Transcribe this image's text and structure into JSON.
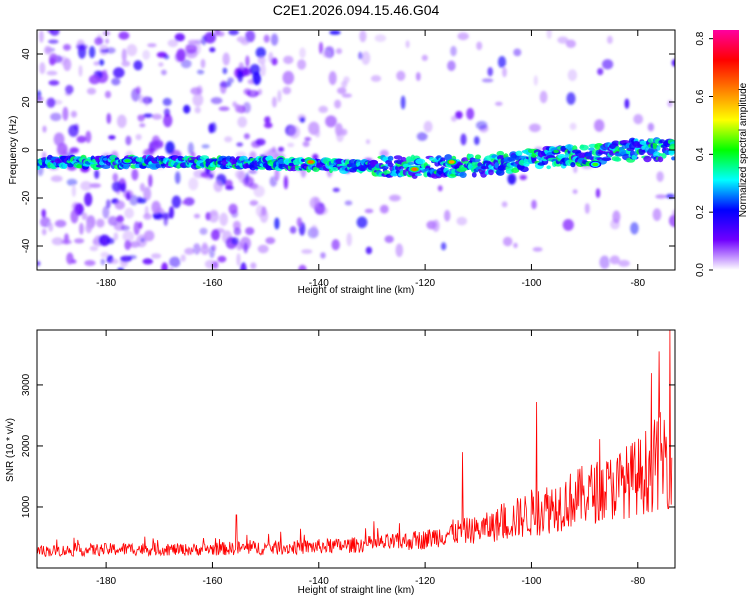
{
  "title": "C2E1.2026.094.15.46.G04",
  "chart_data": [
    {
      "type": "heatmap",
      "name": "spectrogram",
      "xlabel": "Height of straight line (km)",
      "ylabel": "Frequency (Hz)",
      "xlim": [
        -193,
        -73
      ],
      "ylim": [
        -50,
        50
      ],
      "xticks": [
        -180,
        -160,
        -140,
        -120,
        -100,
        -80
      ],
      "xticklabels": [
        "-180",
        "-160",
        "-140",
        "-120",
        "-100",
        "-80"
      ],
      "yticks": [
        -40,
        -20,
        0,
        20,
        40
      ],
      "yticklabels": [
        "-40",
        "-20",
        "0",
        "20",
        "40"
      ],
      "band": {
        "description_points_x": [
          -193,
          -170,
          -150,
          -130,
          -120,
          -110,
          -100,
          -90,
          -80,
          -75
        ],
        "center_freq_hz": [
          -5,
          -5,
          -5.5,
          -7,
          -7,
          -6.5,
          -4,
          -2,
          0,
          0
        ],
        "hotspots": [
          {
            "x": -141.5,
            "y": -5,
            "amp": 0.8
          },
          {
            "x": -122,
            "y": -8,
            "amp": 0.8
          },
          {
            "x": -115,
            "y": -5,
            "amp": 0.75
          },
          {
            "x": -88,
            "y": -6,
            "amp": 0.55
          },
          {
            "x": -176,
            "y": -4.5,
            "amp": 0.5
          }
        ]
      },
      "colorbar": {
        "label": "Normalized spectral amplitude",
        "range": [
          0,
          0.83
        ],
        "ticks": [
          0.0,
          0.2,
          0.4,
          0.6,
          0.8
        ],
        "ticklabels": [
          "0.0",
          "0.2",
          "0.4",
          "0.6",
          "0.8"
        ],
        "colormap": [
          "#ffffff",
          "#7000ff",
          "#0000ff",
          "#00ffff",
          "#00ff00",
          "#ffff00",
          "#ff8000",
          "#ff0000",
          "#ff00a0"
        ]
      }
    },
    {
      "type": "line",
      "name": "snr",
      "xlabel": "Height of straight line (km)",
      "ylabel": "SNR (10 * v/v)",
      "xlim": [
        -193,
        -73
      ],
      "ylim": [
        0,
        3900
      ],
      "xticks": [
        -180,
        -160,
        -140,
        -120,
        -100,
        -80
      ],
      "xticklabels": [
        "-180",
        "-160",
        "-140",
        "-120",
        "-100",
        "-80"
      ],
      "yticks": [
        1000,
        2000,
        3000
      ],
      "yticklabels": [
        "1000",
        "2000",
        "3000"
      ],
      "color": "#ff0000",
      "series": [
        {
          "name": "SNR",
          "x": [
            -193,
            -185,
            -175,
            -165,
            -155,
            -145,
            -135,
            -125,
            -120,
            -115,
            -110,
            -105,
            -100,
            -95,
            -90,
            -85,
            -80,
            -76,
            -74
          ],
          "baseline": [
            250,
            260,
            280,
            270,
            290,
            300,
            330,
            380,
            420,
            520,
            560,
            650,
            780,
            900,
            1050,
            1150,
            1300,
            1500,
            1600
          ],
          "spread": [
            180,
            200,
            220,
            200,
            230,
            240,
            250,
            300,
            320,
            420,
            450,
            600,
            800,
            900,
            1000,
            1100,
            1300,
            1600,
            1800
          ],
          "peaks": [
            {
              "x": -155.5,
              "y": 870
            },
            {
              "x": -113,
              "y": 1900
            },
            {
              "x": -99,
              "y": 2720
            },
            {
              "x": -76,
              "y": 3550
            },
            {
              "x": -74,
              "y": 3900
            }
          ]
        }
      ]
    }
  ]
}
